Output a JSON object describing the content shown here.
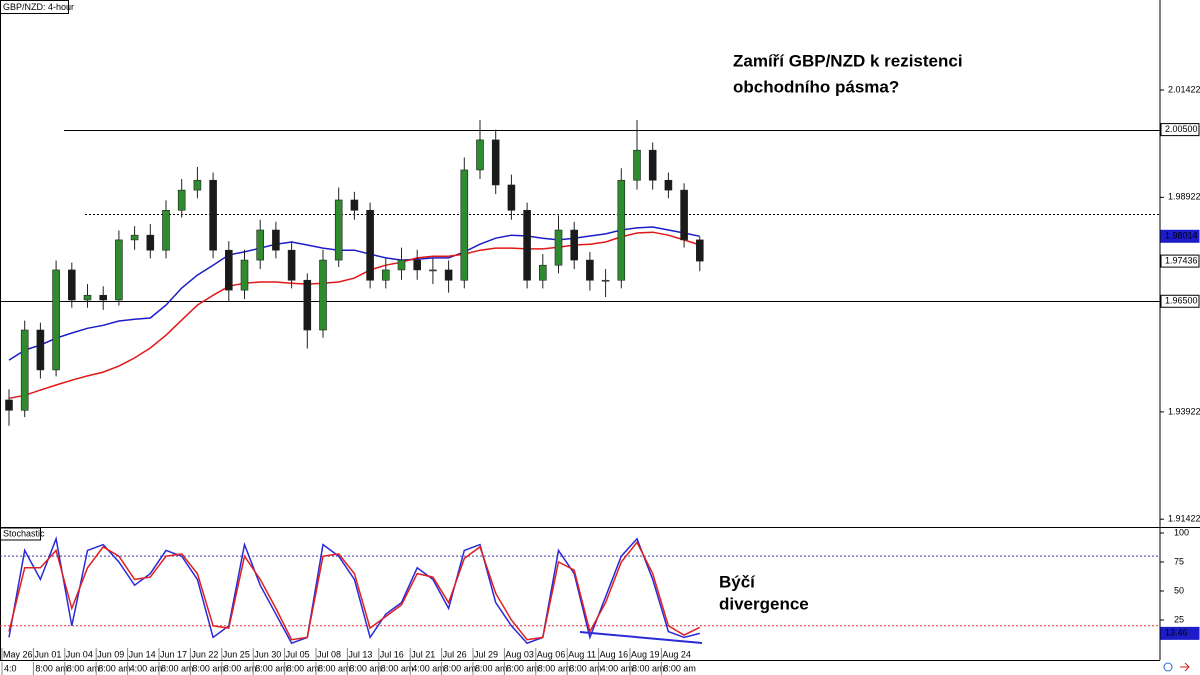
{
  "chart_data": [
    {
      "type": "candlestick",
      "title": "GBP/NZD: 4-hour",
      "annotation": [
        "Zamíří GBP/NZD k rezistenci",
        "obchodního pásma?"
      ],
      "categories": [
        "May 26",
        null,
        "Jun 01",
        null,
        "Jun 04",
        null,
        "Jun 09",
        null,
        "Jun 14",
        null,
        "Jun 17",
        null,
        "Jun 22",
        null,
        "Jun 25",
        null,
        "Jun 30",
        null,
        "Jul 05",
        null,
        "Jul 08",
        null,
        "Jul 13",
        null,
        "Jul 16",
        null,
        "Jul 21",
        null,
        "Jul 26",
        null,
        "Jul 29",
        null,
        "Aug 03",
        null,
        "Aug 06",
        null,
        "Aug 11",
        null,
        "Aug 16",
        null,
        "Aug 19",
        null,
        "Aug 24",
        null,
        null
      ],
      "time_labels": [
        "4:0",
        null,
        "8:00 am",
        null,
        "8:00 am",
        null,
        "8:00 am",
        null,
        "4:00 am",
        null,
        "8:00 am",
        null,
        "8:00 am",
        null,
        "8:00 am",
        null,
        "8:00 am",
        null,
        "8:00 am",
        null,
        "8:00 am",
        null,
        "8:00 am",
        null,
        "8:00 am",
        null,
        "4:00 am",
        null,
        "8:00 am",
        null,
        "8:00 am",
        null,
        "8:00 am",
        null,
        "8:00 am",
        null,
        "8:00 am",
        null,
        "4:00 am",
        null,
        "8:00 am",
        null,
        "8:00 am",
        null,
        null
      ],
      "open": [
        1.942,
        1.9396,
        1.9583,
        1.949,
        1.9723,
        1.9653,
        1.9664,
        1.9653,
        1.9793,
        1.9804,
        1.9769,
        1.9862,
        1.9909,
        1.9932,
        1.9769,
        1.9676,
        1.9746,
        1.9816,
        1.9769,
        1.9699,
        1.9583,
        1.9746,
        1.9886,
        1.9862,
        1.9699,
        1.9723,
        1.9746,
        1.9723,
        1.9723,
        1.9699,
        1.9956,
        2.0026,
        1.9921,
        1.9862,
        1.9699,
        1.9734,
        1.9816,
        1.9746,
        1.9699,
        1.9699,
        1.9932,
        2.0002,
        1.9932,
        1.9909,
        1.9793
      ],
      "high": [
        1.9445,
        1.9605,
        1.96,
        1.9745,
        1.974,
        1.969,
        1.9685,
        1.9815,
        1.9825,
        1.983,
        1.9885,
        1.9935,
        1.9963,
        1.995,
        1.979,
        1.977,
        1.984,
        1.9835,
        1.979,
        1.9715,
        1.977,
        1.9915,
        1.9905,
        1.988,
        1.975,
        1.9775,
        1.977,
        1.975,
        1.9745,
        1.9985,
        2.0072,
        2.005,
        1.9945,
        1.988,
        1.976,
        1.985,
        1.9835,
        1.9765,
        1.9725,
        1.996,
        2.0072,
        2.002,
        1.995,
        1.9925,
        1.98
      ],
      "low": [
        1.936,
        1.938,
        1.947,
        1.9475,
        1.9635,
        1.9635,
        1.963,
        1.964,
        1.977,
        1.975,
        1.975,
        1.9845,
        1.989,
        1.975,
        1.965,
        1.9655,
        1.9725,
        1.975,
        1.968,
        1.954,
        1.9565,
        1.973,
        1.984,
        1.968,
        1.968,
        1.97,
        1.97,
        1.969,
        1.967,
        1.968,
        1.9935,
        1.99,
        1.984,
        1.968,
        1.968,
        1.9715,
        1.9725,
        1.9675,
        1.966,
        1.968,
        1.991,
        1.991,
        1.989,
        1.9775,
        1.972
      ],
      "close": [
        1.9396,
        1.9583,
        1.949,
        1.9723,
        1.9653,
        1.9664,
        1.9653,
        1.9793,
        1.9804,
        1.9769,
        1.9862,
        1.9909,
        1.9932,
        1.9769,
        1.9676,
        1.9746,
        1.9816,
        1.9769,
        1.9699,
        1.9583,
        1.9746,
        1.9886,
        1.9862,
        1.9699,
        1.9723,
        1.9746,
        1.9723,
        1.9723,
        1.9699,
        1.9956,
        2.0026,
        1.9921,
        1.9862,
        1.9699,
        1.9734,
        1.9816,
        1.9746,
        1.9699,
        1.9699,
        1.9932,
        2.0002,
        1.9932,
        1.9909,
        1.9793,
        1.97436
      ],
      "up_color": "#2e8b2e",
      "down_color": "#1a1a1a",
      "series": [
        {
          "color": "#1c1cc8",
          "values": [
            1.9513,
            1.9536,
            1.9548,
            1.9564,
            1.9576,
            1.9587,
            1.9594,
            1.9604,
            1.9608,
            1.9611,
            1.9641,
            1.9681,
            1.9711,
            1.9734,
            1.9758,
            1.9765,
            1.9774,
            1.9783,
            1.9788,
            1.9781,
            1.9774,
            1.9769,
            1.9769,
            1.976,
            1.9751,
            1.9746,
            1.9748,
            1.9751,
            1.9751,
            1.9765,
            1.9783,
            1.9797,
            1.9804,
            1.9802,
            1.9797,
            1.9793,
            1.9797,
            1.9802,
            1.9807,
            1.9816,
            1.9821,
            1.9823,
            1.9816,
            1.9809,
            1.98014
          ]
        },
        {
          "color": "#e01818",
          "values": [
            1.9424,
            1.9431,
            1.9443,
            1.9455,
            1.9466,
            1.9476,
            1.9485,
            1.9499,
            1.9518,
            1.9541,
            1.9571,
            1.9606,
            1.9641,
            1.9664,
            1.9685,
            1.9692,
            1.9695,
            1.9695,
            1.9692,
            1.969,
            1.9692,
            1.9695,
            1.9704,
            1.9723,
            1.9734,
            1.9741,
            1.9751,
            1.9755,
            1.9755,
            1.976,
            1.9769,
            1.9774,
            1.9774,
            1.9772,
            1.9772,
            1.9776,
            1.9781,
            1.9783,
            1.9788,
            1.98,
            1.9809,
            1.9811,
            1.9804,
            1.9793,
            1.9781
          ]
        }
      ],
      "ylim": [
        1.9124,
        2.0352
      ],
      "yticks": [
        1.91422,
        1.93922,
        1.98922,
        2.01422
      ],
      "levels": [
        {
          "value": 2.005,
          "label": "2.00500"
        },
        {
          "value": 1.9853,
          "dash": true
        },
        {
          "value": 1.965,
          "label": "1.96500"
        }
      ],
      "price_labels": [
        {
          "value": 1.98014,
          "label": "1.98014",
          "color": "#1c1cc8"
        },
        {
          "value": 1.97436,
          "label": "1.97436"
        }
      ]
    },
    {
      "type": "line",
      "title": "Stochastic",
      "annotation": [
        "Býčí",
        "divergence"
      ],
      "series": [
        {
          "color": "#2a2ad8",
          "values": [
            10,
            85,
            60,
            95,
            20,
            85,
            90,
            75,
            55,
            65,
            85,
            80,
            60,
            10,
            20,
            90,
            55,
            30,
            5,
            10,
            90,
            80,
            60,
            10,
            30,
            40,
            70,
            60,
            35,
            85,
            90,
            40,
            20,
            5,
            10,
            85,
            65,
            10,
            45,
            80,
            95,
            60,
            15,
            10,
            13.46
          ]
        },
        {
          "color": "#e02020",
          "values": [
            15,
            70,
            70,
            85,
            35,
            70,
            88,
            80,
            60,
            62,
            80,
            82,
            65,
            20,
            18,
            80,
            60,
            35,
            8,
            10,
            80,
            82,
            65,
            18,
            28,
            38,
            65,
            62,
            40,
            78,
            88,
            48,
            25,
            8,
            10,
            75,
            68,
            15,
            40,
            75,
            92,
            65,
            20,
            12,
            18.7
          ]
        }
      ],
      "ylim": [
        -9.5,
        104.3
      ],
      "yticks": [
        25,
        50,
        75,
        100
      ],
      "levels": [
        {
          "value": 80,
          "color": "#3a3aa8"
        },
        {
          "value": 20,
          "color": "#e03030"
        }
      ],
      "price_labels": [
        {
          "value": 13.46,
          "label": "13.46",
          "color": "#1c1cc8"
        }
      ]
    }
  ]
}
